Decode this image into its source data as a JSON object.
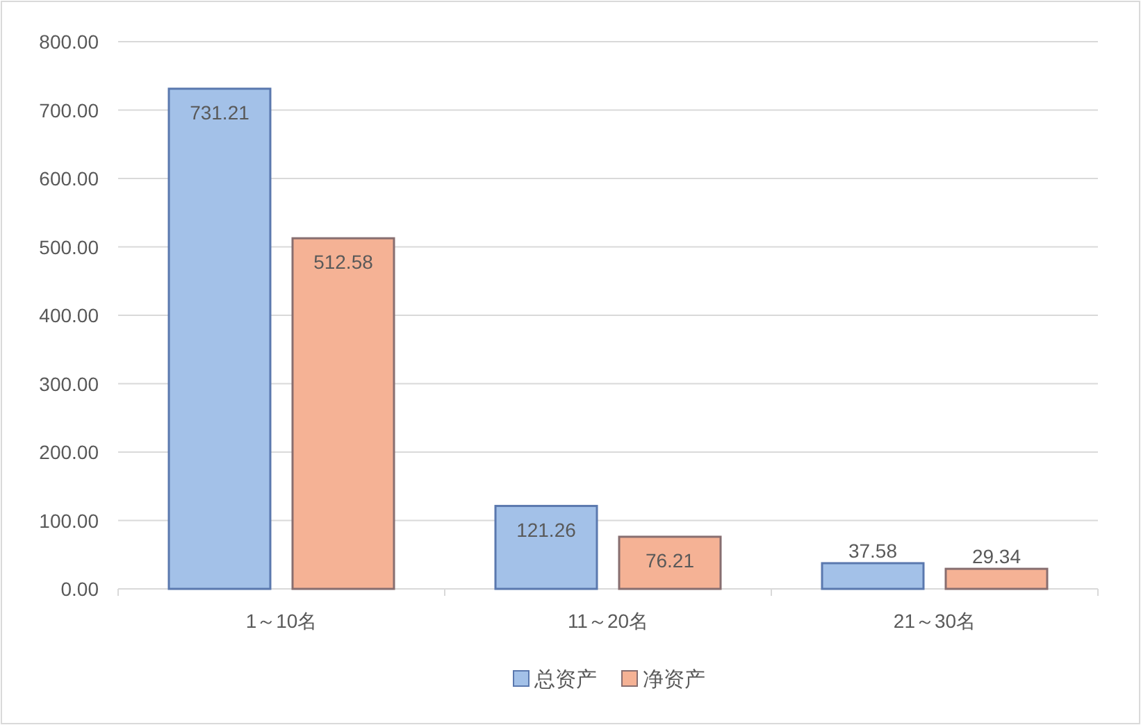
{
  "chart_data": {
    "type": "bar",
    "categories": [
      "1～10名",
      "11～20名",
      "21～30名"
    ],
    "series": [
      {
        "name": "总资产",
        "color": "#a3c1e8",
        "values": [
          731.21,
          121.26,
          37.58
        ]
      },
      {
        "name": "净资产",
        "color": "#f5b295",
        "values": [
          512.58,
          76.21,
          29.34
        ]
      }
    ],
    "ylim": [
      0,
      800
    ],
    "yticks": [
      {
        "value": 0,
        "label": "0.00"
      },
      {
        "value": 100,
        "label": "100.00"
      },
      {
        "value": 200,
        "label": "200.00"
      },
      {
        "value": 300,
        "label": "300.00"
      },
      {
        "value": 400,
        "label": "400.00"
      },
      {
        "value": 500,
        "label": "500.00"
      },
      {
        "value": 600,
        "label": "600.00"
      },
      {
        "value": 700,
        "label": "700.00"
      },
      {
        "value": 800,
        "label": "800.00"
      }
    ],
    "grid": "y",
    "legend": "bottom",
    "data_labels": true
  }
}
